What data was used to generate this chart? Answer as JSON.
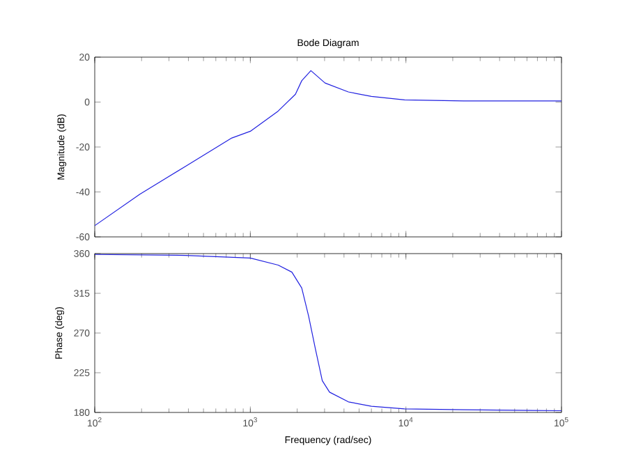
{
  "chart_data": [
    {
      "type": "line",
      "title": "Bode Diagram",
      "ylabel": "Magnitude (dB)",
      "color": "#2020e0",
      "x": [
        100,
        195,
        385,
        760,
        1000,
        1510,
        1950,
        2140,
        2450,
        3020,
        4270,
        6000,
        9800,
        23500,
        100000
      ],
      "values": [
        -55,
        -41,
        -28.5,
        -16,
        -13,
        -4,
        3.5,
        9.5,
        14,
        8.5,
        4.5,
        2.5,
        1,
        0.5,
        0.5
      ],
      "xlim": [
        100,
        100000
      ],
      "ylim": [
        -60,
        20
      ],
      "xticks": [
        100,
        1000,
        10000,
        100000
      ],
      "yticks": [
        -60,
        -40,
        -20,
        0,
        20
      ],
      "log": "x",
      "tick_labels": "y"
    },
    {
      "type": "line",
      "xlabel": "Frequency  (rad/sec)",
      "ylabel": "Phase (deg)",
      "color": "#2020e0",
      "x": [
        100,
        385,
        1000,
        1510,
        1850,
        2140,
        2370,
        2620,
        2900,
        3230,
        4270,
        6000,
        9800,
        23500,
        100000
      ],
      "values": [
        359,
        358,
        355,
        347,
        339,
        321,
        289,
        252,
        216,
        203,
        192,
        187,
        184,
        183,
        182
      ],
      "xlim": [
        100,
        100000
      ],
      "ylim": [
        180,
        360
      ],
      "xticks": [
        {
          "value": 100,
          "label": "10$^{2}$"
        },
        {
          "value": 1000,
          "label": "10$^{3}$"
        },
        {
          "value": 10000,
          "label": "10$^{4}$"
        },
        {
          "value": 100000,
          "label": "10$^{5}$"
        }
      ],
      "yticks": [
        180,
        225,
        270,
        315,
        360
      ],
      "log": "x"
    }
  ]
}
